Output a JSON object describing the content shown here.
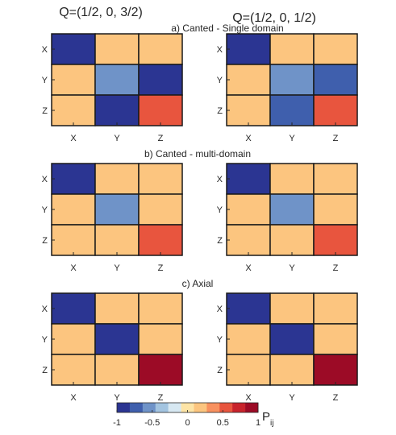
{
  "column_titles": [
    "Q=(1/2, 0, 3/2)",
    "Q=(1/2, 0, 1/2)"
  ],
  "colorbar": {
    "label": "P",
    "label_subscript": "ij",
    "ticks": [
      "-1",
      "-0.5",
      "0",
      "0.5",
      "1"
    ],
    "colors": [
      "#2b3592",
      "#3f5fad",
      "#6f93c8",
      "#a3c4e0",
      "#d7e8f2",
      "#fde4a6",
      "#fcc57f",
      "#f8915f",
      "#e8553e",
      "#c8232c",
      "#9c0b26"
    ]
  },
  "chart_data": [
    {
      "type": "heatmap",
      "title": "a) Canted - Single domain",
      "row_labels": [
        "X",
        "Y",
        "Z"
      ],
      "col_labels": [
        "X",
        "Y",
        "Z"
      ],
      "matrix": [
        [
          -1,
          0.2,
          0.2
        ],
        [
          0.2,
          -0.5,
          -1
        ],
        [
          0.2,
          -1,
          0.6
        ]
      ],
      "clim": [
        -1,
        1
      ]
    },
    {
      "type": "heatmap",
      "title": "",
      "row_labels": [
        "X",
        "Y",
        "Z"
      ],
      "col_labels": [
        "X",
        "Y",
        "Z"
      ],
      "matrix": [
        [
          -1,
          0.2,
          0.2
        ],
        [
          0.2,
          -0.5,
          -0.8
        ],
        [
          0.2,
          -0.8,
          0.6
        ]
      ],
      "clim": [
        -1,
        1
      ]
    },
    {
      "type": "heatmap",
      "title": "b) Canted - multi-domain",
      "row_labels": [
        "X",
        "Y",
        "Z"
      ],
      "col_labels": [
        "X",
        "Y",
        "Z"
      ],
      "matrix": [
        [
          -1,
          0.2,
          0.2
        ],
        [
          0.2,
          -0.5,
          0.2
        ],
        [
          0.2,
          0.2,
          0.6
        ]
      ],
      "clim": [
        -1,
        1
      ]
    },
    {
      "type": "heatmap",
      "title": "",
      "row_labels": [
        "X",
        "Y",
        "Z"
      ],
      "col_labels": [
        "X",
        "Y",
        "Z"
      ],
      "matrix": [
        [
          -1,
          0.2,
          0.2
        ],
        [
          0.2,
          -0.5,
          0.2
        ],
        [
          0.2,
          0.2,
          0.6
        ]
      ],
      "clim": [
        -1,
        1
      ]
    },
    {
      "type": "heatmap",
      "title": "c) Axial",
      "row_labels": [
        "X",
        "Y",
        "Z"
      ],
      "col_labels": [
        "X",
        "Y",
        "Z"
      ],
      "matrix": [
        [
          -1,
          0.2,
          0.2
        ],
        [
          0.2,
          -1,
          0.2
        ],
        [
          0.2,
          0.2,
          1
        ]
      ],
      "clim": [
        -1,
        1
      ]
    },
    {
      "type": "heatmap",
      "title": "",
      "row_labels": [
        "X",
        "Y",
        "Z"
      ],
      "col_labels": [
        "X",
        "Y",
        "Z"
      ],
      "matrix": [
        [
          -1,
          0.2,
          0.2
        ],
        [
          0.2,
          -1,
          0.2
        ],
        [
          0.2,
          0.2,
          1
        ]
      ],
      "clim": [
        -1,
        1
      ]
    }
  ]
}
